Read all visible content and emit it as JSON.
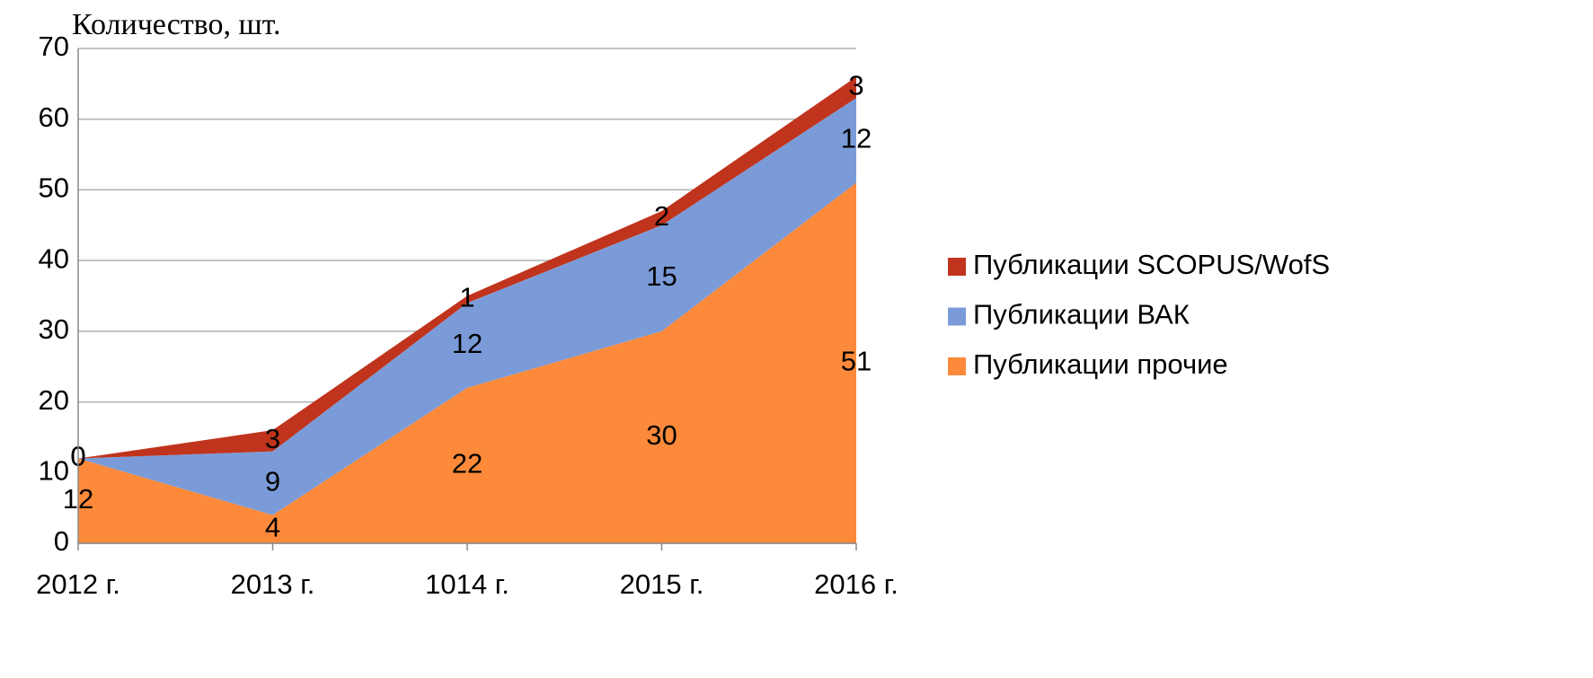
{
  "chart_data": {
    "type": "stacked_area",
    "y_label": "Количество, шт.",
    "categories": [
      "2012 г.",
      "2013 г.",
      "1014 г.",
      "2015 г.",
      "2016 г."
    ],
    "series": [
      {
        "name": "Публикации прочие",
        "color": "#fd8a3a",
        "values": [
          12,
          4,
          22,
          30,
          51
        ]
      },
      {
        "name": "Публикации ВАК",
        "color": "#7b9bd8",
        "values": [
          0,
          9,
          12,
          15,
          12
        ]
      },
      {
        "name": "Публикации SCOPUS/WofS",
        "color": "#c0341d",
        "values": [
          0,
          3,
          1,
          2,
          3
        ]
      }
    ],
    "ylim": [
      0,
      70
    ],
    "yticks": [
      0,
      10,
      20,
      30,
      40,
      50,
      60,
      70
    ],
    "grid": true,
    "legend": "right"
  }
}
